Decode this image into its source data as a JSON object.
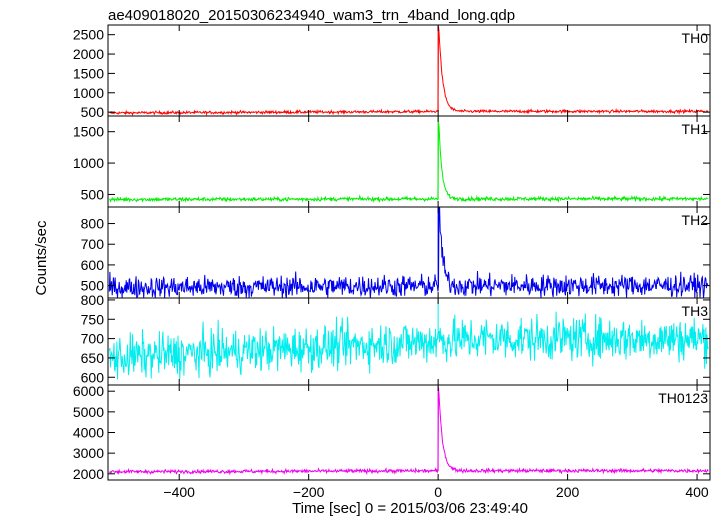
{
  "title": "ae409018020_20150306234940_wam3_trn_4band_long.qdp",
  "ylabel": "Counts/sec",
  "xlabel": "Time [sec] 0 = 2015/03/06 23:49:40",
  "chart_data": {
    "type": "line",
    "title": "ae409018020_20150306234940_wam3_trn_4band_long.qdp",
    "xlabel": "Time [sec] 0 = 2015/03/06 23:49:40",
    "ylabel": "Counts/sec",
    "xlim": [
      -510,
      420
    ],
    "x_ticks": [
      -400,
      -200,
      0,
      200,
      400
    ],
    "grid": false,
    "panels": [
      {
        "name": "TH0",
        "color": "#ff0000",
        "ylim": [
          400,
          2750
        ],
        "y_ticks": [
          500,
          1000,
          1500,
          2000,
          2500
        ],
        "baseline_start": 480,
        "baseline_end": 520,
        "noise": 25,
        "peak": 2750,
        "peak_time": 1,
        "decay_time": 6
      },
      {
        "name": "TH1",
        "color": "#00ee00",
        "ylim": [
          300,
          1750
        ],
        "y_ticks": [
          500,
          1000,
          1500
        ],
        "baseline_start": 420,
        "baseline_end": 430,
        "noise": 22,
        "peak": 1650,
        "peak_time": 1,
        "decay_time": 5
      },
      {
        "name": "TH2",
        "color": "#0000ee",
        "ylim": [
          440,
          880
        ],
        "y_ticks": [
          500,
          600,
          700,
          800
        ],
        "baseline_start": 490,
        "baseline_end": 500,
        "noise": 38,
        "peak": 880,
        "peak_time": 2,
        "decay_time": 5
      },
      {
        "name": "TH3",
        "color": "#00eeee",
        "ylim": [
          580,
          805
        ],
        "y_ticks": [
          600,
          650,
          700,
          750,
          800
        ],
        "baseline_start": 650,
        "baseline_end": 700,
        "noise": 40,
        "peak": 710,
        "peak_time": 0,
        "decay_time": 5
      },
      {
        "name": "TH0123",
        "color": "#ee00ee",
        "ylim": [
          1700,
          6300
        ],
        "y_ticks": [
          2000,
          3000,
          4000,
          5000,
          6000
        ],
        "baseline_start": 2100,
        "baseline_end": 2150,
        "noise": 60,
        "peak": 6100,
        "peak_time": 1,
        "decay_time": 6
      }
    ]
  }
}
